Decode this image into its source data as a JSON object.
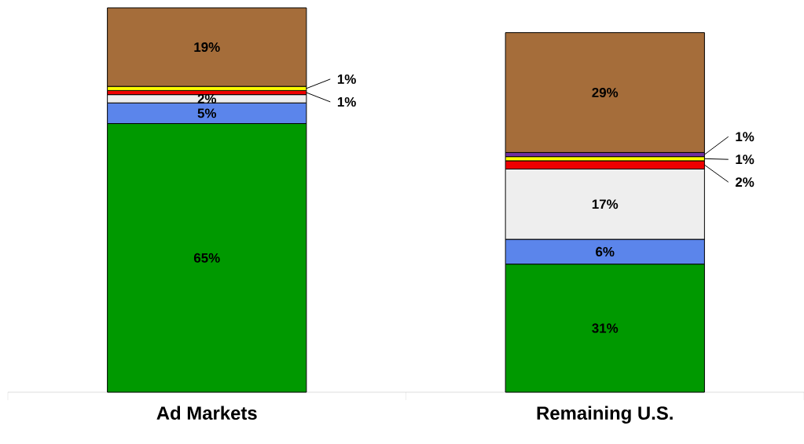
{
  "chart_data": {
    "type": "bar",
    "stacked": true,
    "categories": [
      "Ad Markets",
      "Remaining U.S."
    ],
    "series": [
      {
        "color": "#009900",
        "values": [
          65,
          31
        ],
        "value_labels": [
          "65%",
          "31%"
        ]
      },
      {
        "color": "#5b85eb",
        "values": [
          5,
          6
        ],
        "value_labels": [
          "5%",
          "6%"
        ]
      },
      {
        "color": "#eeeeee",
        "values": [
          2,
          17
        ],
        "value_labels": [
          "2%",
          "17%"
        ]
      },
      {
        "color": "#ee0000",
        "values": [
          1,
          2
        ],
        "value_labels": [
          "1%",
          "2%"
        ]
      },
      {
        "color": "#ffff00",
        "values": [
          1,
          1
        ],
        "value_labels": [
          "1%",
          "1%"
        ]
      },
      {
        "color": "#7030a0",
        "values": [
          null,
          1
        ],
        "value_labels": [
          null,
          "1%"
        ]
      },
      {
        "color": "#a56d3a",
        "values": [
          19,
          29
        ],
        "value_labels": [
          "19%",
          "29%"
        ]
      }
    ]
  }
}
